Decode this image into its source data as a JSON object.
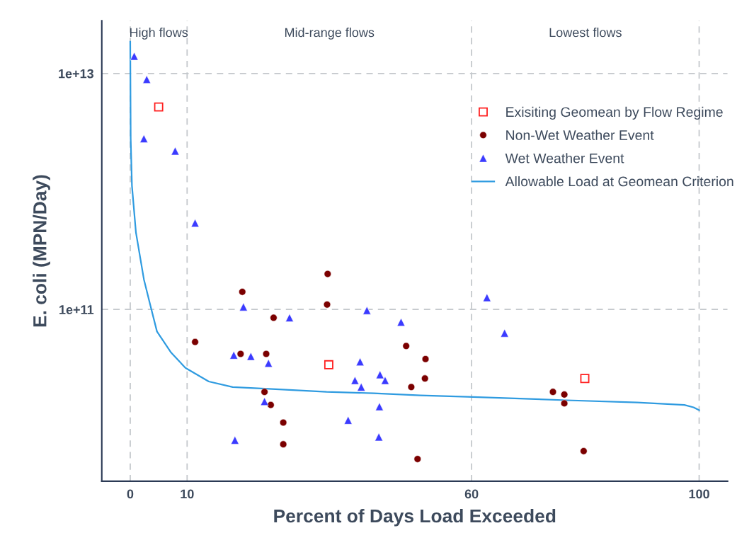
{
  "chart_data": {
    "type": "scatter",
    "xlabel": "Percent of Days Load Exceeded",
    "ylabel": "E. coli (MPN/Day)",
    "log": "y",
    "grid": true,
    "legend": "top right",
    "xlim": [
      -5,
      105
    ],
    "xticks": [
      0,
      10,
      60,
      100
    ],
    "ylim": [
      3500000000.0,
      28000000000000.0
    ],
    "yticks": [
      {
        "value": 100000000000.0,
        "label": "1e+11"
      },
      {
        "value": 10000000000000.0,
        "label": "1e+13"
      }
    ],
    "annotations": [
      "High flows",
      "Mid-range flows",
      "Lowest flows"
    ],
    "series": [
      {
        "name": "Exisiting Geomean by Flow Regime",
        "marker": "square",
        "color": "#ff2020",
        "x": [
          5.0,
          34.9,
          79.9
        ],
        "values": [
          5200000000000.0,
          34000000000.0,
          26000000000.0
        ]
      },
      {
        "name": "Non-Wet Weather Event",
        "marker": "circle",
        "color": "#7b0000",
        "x": [
          11.4,
          19.7,
          25.2,
          19.4,
          23.9,
          23.6,
          24.7,
          26.9,
          26.9,
          34.7,
          34.6,
          48.5,
          51.9,
          51.8,
          49.4,
          50.5,
          74.3,
          76.3,
          76.3,
          79.7
        ],
        "values": [
          53000000000.0,
          141000000000.0,
          85000000000.0,
          42000000000.0,
          42000000000.0,
          20000000000.0,
          15500000000.0,
          11000000000.0,
          7200000000.0,
          200000000000.0,
          110000000000.0,
          49000000000.0,
          38000000000.0,
          26000000000.0,
          22000000000.0,
          5400000000.0,
          20000000000.0,
          19000000000.0,
          16000000000.0,
          6300000000.0
        ]
      },
      {
        "name": "Wet Weather Event",
        "marker": "triangle",
        "color": "#3b3bff",
        "x": [
          0.7,
          2.9,
          2.4,
          7.9,
          11.4,
          19.9,
          28.0,
          18.2,
          21.2,
          24.3,
          23.6,
          18.4,
          41.6,
          47.6,
          40.4,
          39.5,
          40.6,
          43.9,
          44.8,
          43.8,
          38.3,
          43.7,
          62.7,
          65.8
        ],
        "values": [
          14000000000000.0,
          8900000000000.0,
          2800000000000.0,
          2200000000000.0,
          540000000000.0,
          105000000000.0,
          85000000000.0,
          41000000000.0,
          40000000000.0,
          35000000000.0,
          16600000000.0,
          7800000000.0,
          98000000000.0,
          78000000000.0,
          36000000000.0,
          25000000000.0,
          22000000000.0,
          28000000000.0,
          25000000000.0,
          15000000000.0,
          11500000000.0,
          8300000000.0,
          126000000000.0,
          63000000000.0
        ]
      },
      {
        "name": "Allowable Load at Geomean Criterion",
        "type": "line",
        "marker": "none",
        "line_style": "solid",
        "color": "#2f9be0",
        "x": [
          0,
          0.08,
          0.3,
          1.0,
          2.4,
          3.5,
          4.7,
          7.2,
          9.7,
          13.8,
          18.0,
          26.2,
          34.5,
          42.8,
          51.0,
          59.3,
          76.7,
          89.1,
          97.4,
          99.0,
          100
        ],
        "values": [
          18600000000000.0,
          2800000000000.0,
          1120000000000.0,
          450000000000.0,
          180000000000.0,
          110000000000.0,
          65000000000.0,
          43000000000.0,
          32000000000.0,
          24500000000.0,
          22000000000.0,
          21000000000.0,
          20000000000.0,
          19500000000.0,
          18700000000.0,
          18200000000.0,
          17000000000.0,
          16300000000.0,
          15500000000.0,
          14800000000.0,
          14000000000.0
        ]
      }
    ]
  }
}
